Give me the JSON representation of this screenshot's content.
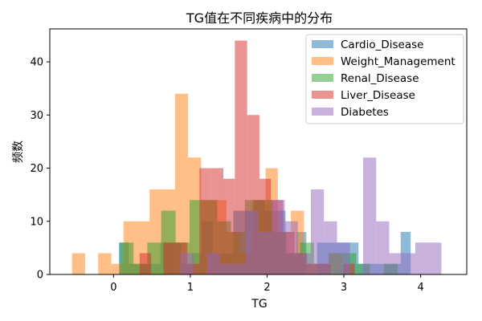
{
  "chart_data": {
    "type": "histogram",
    "title": "TG值在不同疾病中的分布",
    "xlabel": "TG",
    "ylabel": "频数",
    "xlim": [
      -0.83,
      4.6
    ],
    "ylim": [
      0,
      46.2
    ],
    "x_ticks": [
      0,
      1,
      2,
      3,
      4
    ],
    "y_ticks": [
      0,
      10,
      20,
      30,
      40
    ],
    "legend_position": "top-right",
    "series": [
      {
        "name": "Cardio_Disease",
        "color": "#1f77b4",
        "bins": [
          [
            -0.07,
            0.07,
            0
          ],
          [
            0.07,
            0.2,
            6
          ],
          [
            0.2,
            0.34,
            2
          ],
          [
            0.34,
            0.47,
            2
          ],
          [
            0.47,
            0.61,
            2
          ],
          [
            0.61,
            0.75,
            6
          ],
          [
            0.75,
            0.88,
            6
          ],
          [
            0.88,
            1.02,
            2
          ],
          [
            1.02,
            1.15,
            4
          ],
          [
            1.15,
            1.29,
            10
          ],
          [
            1.29,
            1.43,
            4
          ],
          [
            1.43,
            1.56,
            4
          ],
          [
            1.56,
            1.7,
            12
          ],
          [
            1.7,
            1.83,
            12
          ],
          [
            1.83,
            1.97,
            14
          ],
          [
            1.97,
            2.11,
            12
          ],
          [
            2.11,
            2.24,
            12
          ],
          [
            2.24,
            2.38,
            4
          ],
          [
            2.38,
            2.51,
            8
          ],
          [
            2.51,
            2.65,
            0
          ],
          [
            2.65,
            2.79,
            6
          ],
          [
            2.79,
            2.92,
            6
          ],
          [
            2.92,
            3.06,
            6
          ],
          [
            3.06,
            3.19,
            6
          ],
          [
            3.19,
            3.33,
            2
          ],
          [
            3.33,
            3.47,
            2
          ],
          [
            3.47,
            3.6,
            2
          ],
          [
            3.6,
            3.74,
            2
          ],
          [
            3.74,
            3.87,
            8
          ],
          [
            3.87,
            4.01,
            0
          ]
        ]
      },
      {
        "name": "Weight_Management",
        "color": "#ff7f0e",
        "bins": [
          [
            -0.54,
            -0.37,
            4
          ],
          [
            -0.37,
            -0.2,
            0
          ],
          [
            -0.2,
            -0.03,
            4
          ],
          [
            -0.03,
            0.13,
            2
          ],
          [
            0.13,
            0.3,
            10
          ],
          [
            0.3,
            0.47,
            10
          ],
          [
            0.47,
            0.64,
            16
          ],
          [
            0.64,
            0.8,
            16
          ],
          [
            0.8,
            0.97,
            34
          ],
          [
            0.97,
            1.14,
            22
          ],
          [
            1.14,
            1.31,
            14
          ],
          [
            1.31,
            1.47,
            14
          ],
          [
            1.47,
            1.64,
            8
          ],
          [
            1.64,
            1.81,
            4
          ],
          [
            1.81,
            1.98,
            14
          ],
          [
            1.98,
            2.14,
            20
          ],
          [
            2.14,
            2.31,
            8
          ],
          [
            2.31,
            2.48,
            12
          ],
          [
            2.48,
            2.65,
            2
          ],
          [
            2.65,
            2.81,
            0
          ],
          [
            2.81,
            2.98,
            4
          ]
        ]
      },
      {
        "name": "Renal_Disease",
        "color": "#2ca02c",
        "bins": [
          [
            0.08,
            0.26,
            6
          ],
          [
            0.26,
            0.44,
            2
          ],
          [
            0.44,
            0.62,
            6
          ],
          [
            0.62,
            0.81,
            12
          ],
          [
            0.81,
            0.99,
            6
          ],
          [
            0.99,
            1.17,
            14
          ],
          [
            1.17,
            1.35,
            14
          ],
          [
            1.35,
            1.53,
            10
          ],
          [
            1.53,
            1.71,
            8
          ],
          [
            1.71,
            1.89,
            14
          ],
          [
            1.89,
            2.07,
            14
          ],
          [
            2.07,
            2.25,
            8
          ],
          [
            2.25,
            2.43,
            4
          ],
          [
            2.43,
            2.61,
            6
          ],
          [
            2.61,
            2.8,
            2
          ],
          [
            2.8,
            2.98,
            4
          ],
          [
            2.98,
            3.16,
            4
          ],
          [
            3.16,
            3.34,
            2
          ],
          [
            3.34,
            3.52,
            0
          ],
          [
            3.52,
            3.7,
            2
          ]
        ]
      },
      {
        "name": "Liver_Disease",
        "color": "#d62728",
        "bins": [
          [
            0.34,
            0.49,
            4
          ],
          [
            0.49,
            0.65,
            0
          ],
          [
            0.65,
            0.8,
            6
          ],
          [
            0.8,
            0.96,
            6
          ],
          [
            0.96,
            1.12,
            2
          ],
          [
            1.12,
            1.27,
            20
          ],
          [
            1.27,
            1.43,
            20
          ],
          [
            1.43,
            1.58,
            18
          ],
          [
            1.58,
            1.74,
            44
          ],
          [
            1.74,
            1.9,
            30
          ],
          [
            1.9,
            2.05,
            18
          ],
          [
            2.05,
            2.21,
            14
          ],
          [
            2.21,
            2.36,
            8
          ],
          [
            2.36,
            2.52,
            4
          ],
          [
            2.52,
            2.68,
            2
          ],
          [
            2.68,
            2.83,
            2
          ],
          [
            2.83,
            2.99,
            0
          ],
          [
            2.99,
            3.14,
            2
          ]
        ]
      },
      {
        "name": "Diabetes",
        "color": "#9467bd",
        "bins": [
          [
            0.87,
            1.04,
            4
          ],
          [
            1.04,
            1.21,
            0
          ],
          [
            1.21,
            1.38,
            4
          ],
          [
            1.38,
            1.55,
            2
          ],
          [
            1.55,
            1.72,
            2
          ],
          [
            1.72,
            1.89,
            12
          ],
          [
            1.89,
            2.06,
            8
          ],
          [
            2.06,
            2.23,
            14
          ],
          [
            2.23,
            2.4,
            10
          ],
          [
            2.4,
            2.57,
            4
          ],
          [
            2.57,
            2.74,
            16
          ],
          [
            2.74,
            2.91,
            10
          ],
          [
            2.91,
            3.08,
            6
          ],
          [
            3.08,
            3.25,
            0
          ],
          [
            3.25,
            3.42,
            22
          ],
          [
            3.42,
            3.59,
            10
          ],
          [
            3.59,
            3.76,
            4
          ],
          [
            3.76,
            3.93,
            4
          ],
          [
            3.93,
            4.1,
            6
          ],
          [
            4.1,
            4.27,
            6
          ]
        ]
      }
    ]
  }
}
